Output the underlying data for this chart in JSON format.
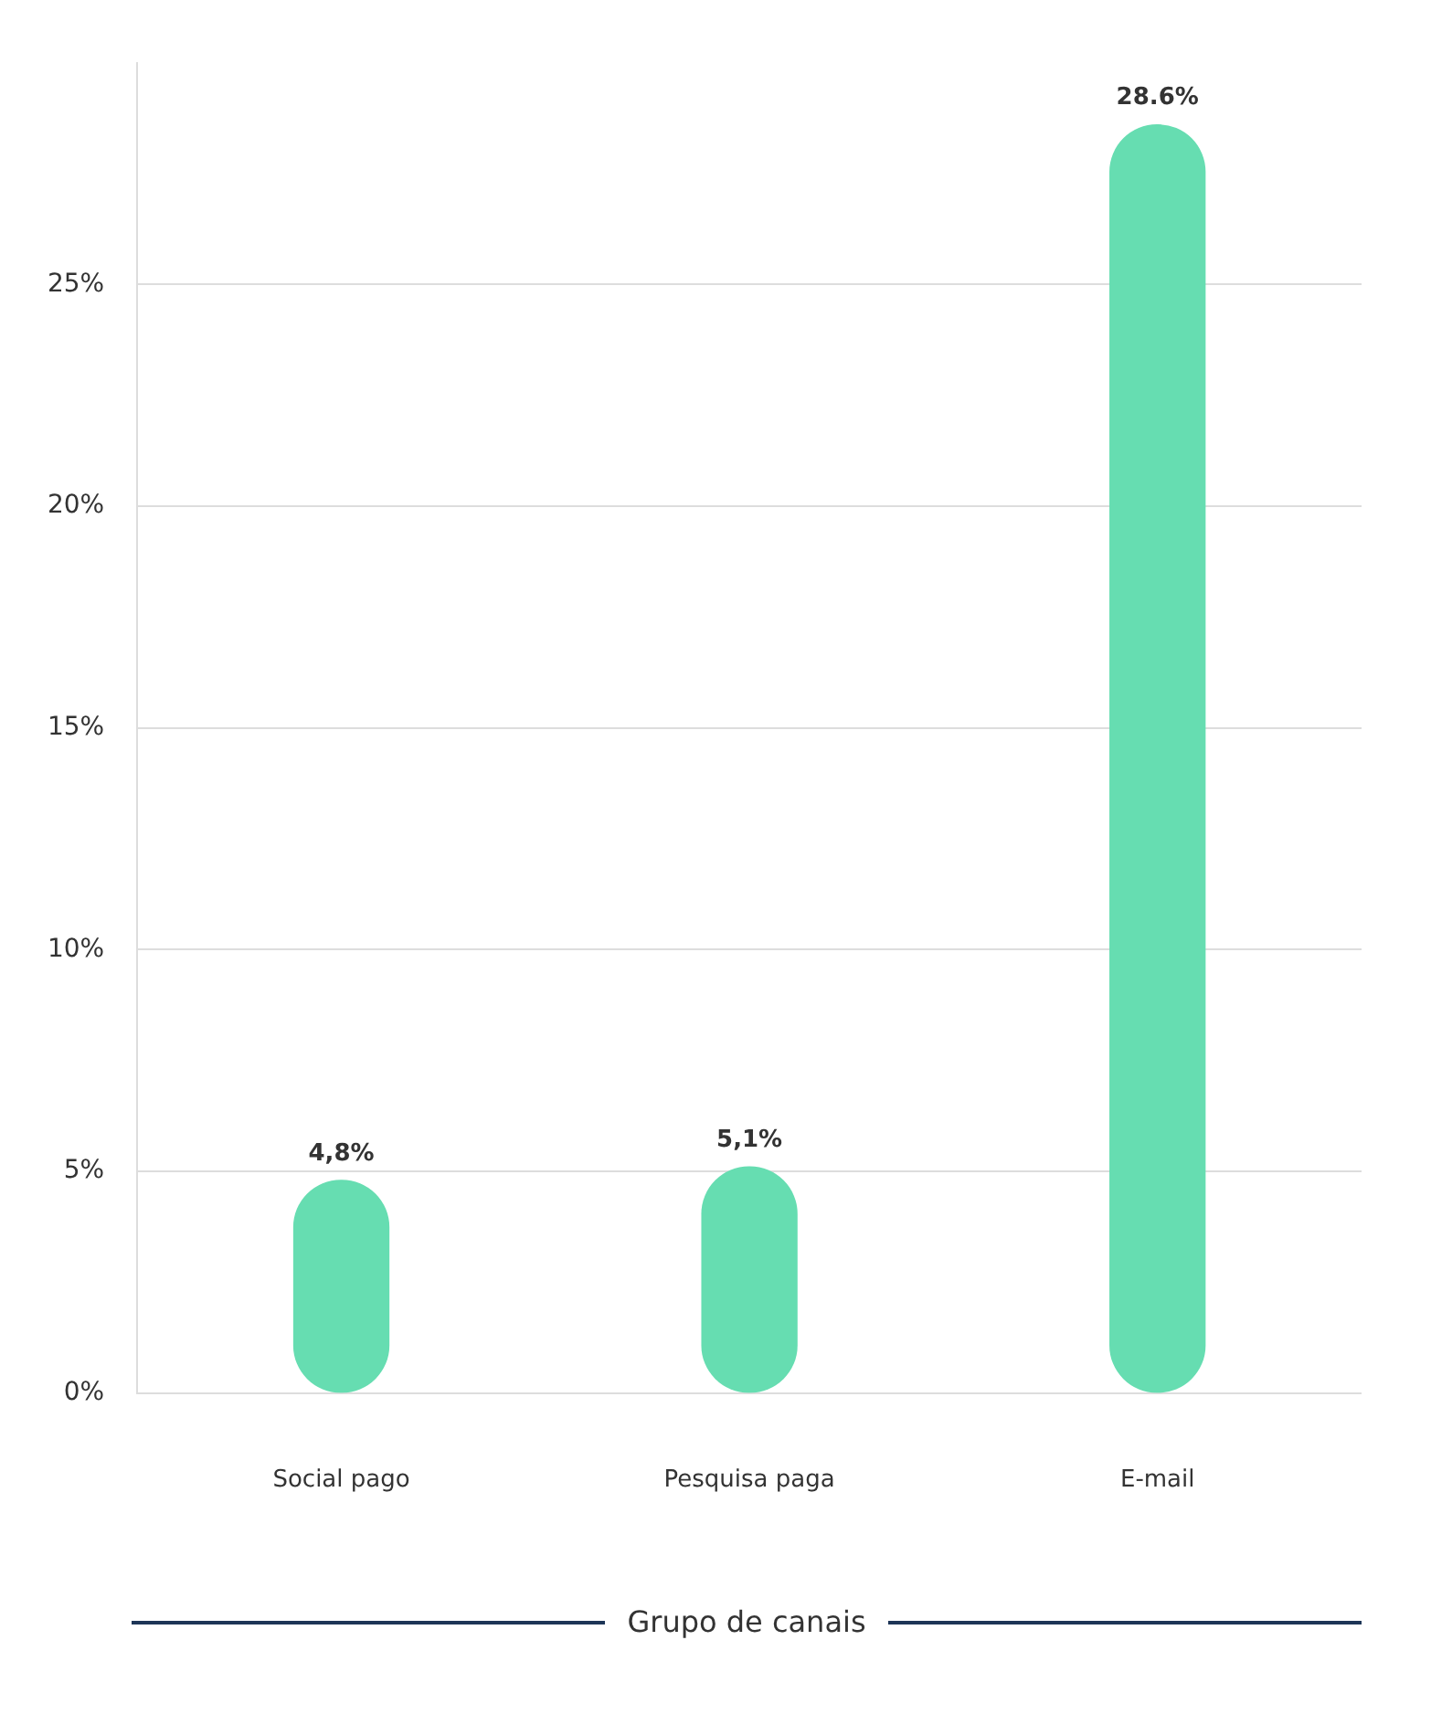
{
  "chart_data": {
    "type": "bar",
    "xlabel": "Grupo de canais",
    "categories": [
      "Social pago",
      "Pesquisa paga",
      "E-mail"
    ],
    "values": [
      4.8,
      5.1,
      28.6
    ],
    "value_labels": [
      "4,8%",
      "5,1%",
      "28.6%"
    ],
    "color": "#66ddb1",
    "ylim": [
      0,
      30
    ],
    "yticks": [
      {
        "value": 0,
        "label": "0%"
      },
      {
        "value": 5,
        "label": "5%"
      },
      {
        "value": 10,
        "label": "10%"
      },
      {
        "value": 15,
        "label": "15%"
      },
      {
        "value": 20,
        "label": "20%"
      },
      {
        "value": 25,
        "label": "25%"
      }
    ],
    "grid": "y",
    "legend": false
  }
}
